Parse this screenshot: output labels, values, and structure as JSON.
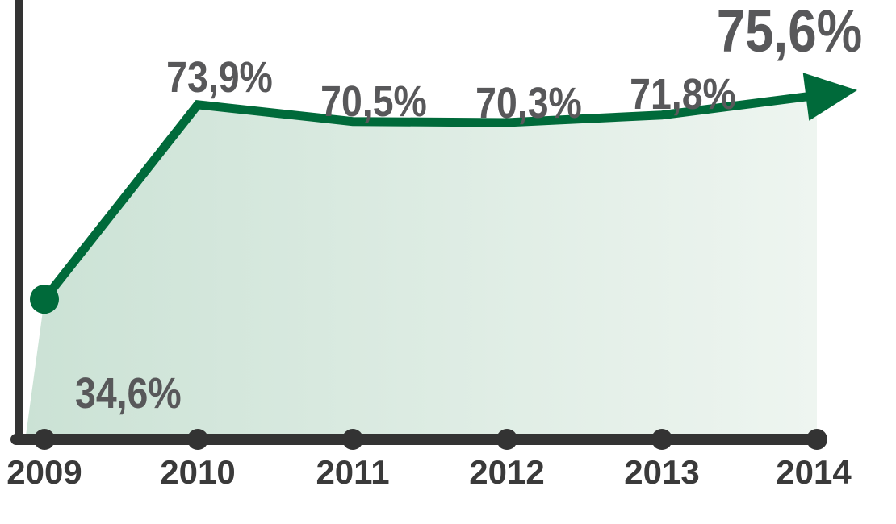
{
  "chart_data": {
    "type": "line",
    "categories": [
      "2009",
      "2010",
      "2011",
      "2012",
      "2013",
      "2014"
    ],
    "series": [
      {
        "values": [
          34.6,
          73.9,
          70.5,
          70.3,
          71.8,
          75.6
        ],
        "labels": [
          "34,6%",
          "73,9%",
          "70,5%",
          "70,3%",
          "71,8%",
          "75,6%"
        ]
      }
    ],
    "title": "",
    "xlabel": "",
    "ylabel": "",
    "grid": false,
    "colors": {
      "line": "#006a3a",
      "area": "#d3e6dc",
      "axis": "#333333",
      "label": "#58585a"
    }
  }
}
